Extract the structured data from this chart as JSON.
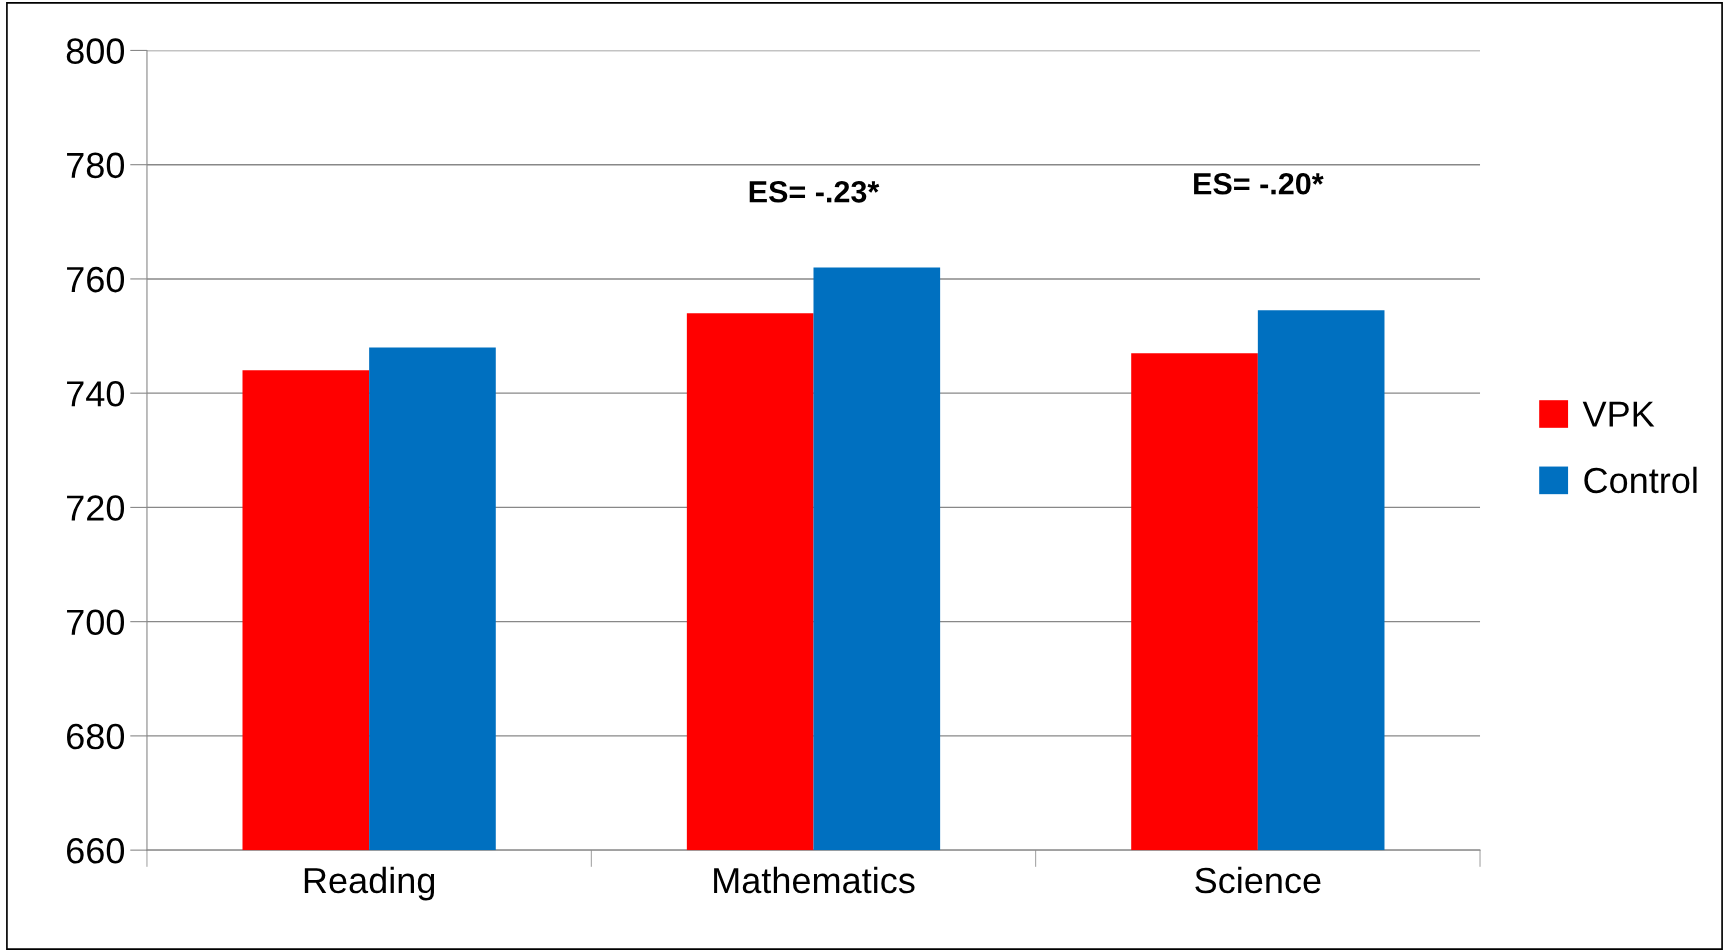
{
  "chart_data": {
    "type": "bar",
    "categories": [
      "Reading",
      "Mathematics",
      "Science"
    ],
    "series": [
      {
        "name": "VPK",
        "color": "#ff0000",
        "values": [
          744,
          754,
          747
        ]
      },
      {
        "name": "Control",
        "color": "#0070c0",
        "values": [
          748,
          762,
          754.5
        ]
      }
    ],
    "ylim": [
      660,
      800
    ],
    "yticks": [
      660,
      680,
      700,
      720,
      740,
      760,
      780,
      800
    ],
    "grid": "y",
    "legend": "right",
    "annotations": [
      "ES= -.23*",
      "ES= -.20*"
    ]
  }
}
